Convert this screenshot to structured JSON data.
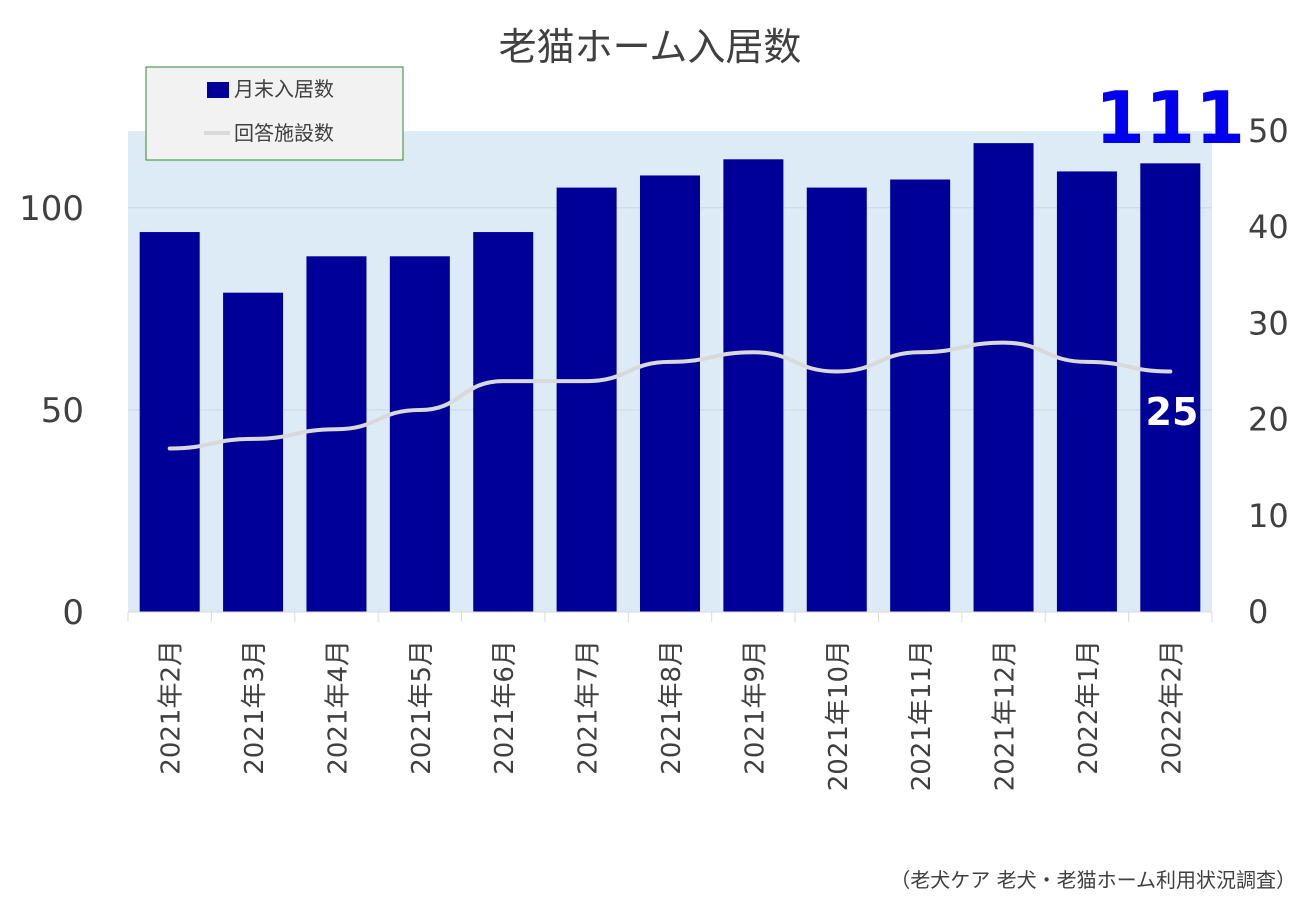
{
  "chart_data": {
    "type": "bar",
    "title": "老猫ホーム入居数",
    "categories": [
      "2021年2月",
      "2021年3月",
      "2021年4月",
      "2021年5月",
      "2021年6月",
      "2021年7月",
      "2021年8月",
      "2021年9月",
      "2021年10月",
      "2021年11月",
      "2021年12月",
      "2022年1月",
      "2022年2月"
    ],
    "series": [
      {
        "name": "月末入居数",
        "type": "bar",
        "axis": "left",
        "color": "#000099",
        "values": [
          94,
          79,
          88,
          88,
          94,
          105,
          108,
          112,
          105,
          107,
          116,
          109,
          111
        ]
      },
      {
        "name": "回答施設数",
        "type": "line",
        "axis": "right",
        "color": "#d9d9d9",
        "values": [
          17,
          18,
          19,
          21,
          24,
          24,
          26,
          27,
          25,
          27,
          28,
          26,
          25
        ]
      }
    ],
    "y_left": {
      "min": 0,
      "max": 119,
      "ticks": [
        0,
        50,
        100
      ]
    },
    "y_right": {
      "min": 0,
      "max": 50,
      "ticks": [
        0,
        10,
        20,
        30,
        40,
        50
      ]
    },
    "grid": true,
    "legend": "top-left",
    "last_bar_label": "111",
    "last_line_label": "25",
    "source": "（老犬ケア 老犬・老猫ホーム利用状況調査）",
    "plot_background": "#ddebf7"
  }
}
